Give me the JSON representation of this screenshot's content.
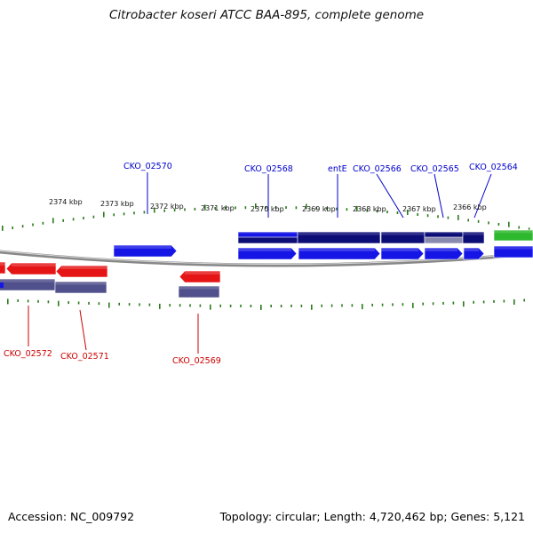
{
  "title": "Citrobacter koseri ATCC BAA-895, complete genome",
  "footer": {
    "accession": "Accession: NC_009792",
    "summary": "Topology: circular; Length: 4,720,462 bp; Genes: 5,121"
  },
  "colors": {
    "forward_cds": "#1515e6",
    "reverse_cds": "#e61515",
    "forward_gene": "#0d0d78",
    "reverse_gene": "#50508c",
    "rna": "#2db82d",
    "tick": "#2a7a1a",
    "backbone": "#8c8c8c",
    "forward_label": "#0000cc",
    "reverse_label": "#cc0000"
  },
  "scale": {
    "unit": "kbp",
    "labels": [
      "2374 kbp",
      "2373 kbp",
      "2372 kbp",
      "2371 kbp",
      "2370 kbp",
      "2369 kbp",
      "2368 kbp",
      "2367 kbp",
      "2366 kbp"
    ]
  },
  "gene_labels": {
    "forward": [
      "CKO_02570",
      "CKO_02568",
      "entE",
      "CKO_02566",
      "CKO_02565",
      "CKO_02564"
    ],
    "reverse": [
      "CKO_02572",
      "CKO_02571",
      "CKO_02569"
    ]
  }
}
